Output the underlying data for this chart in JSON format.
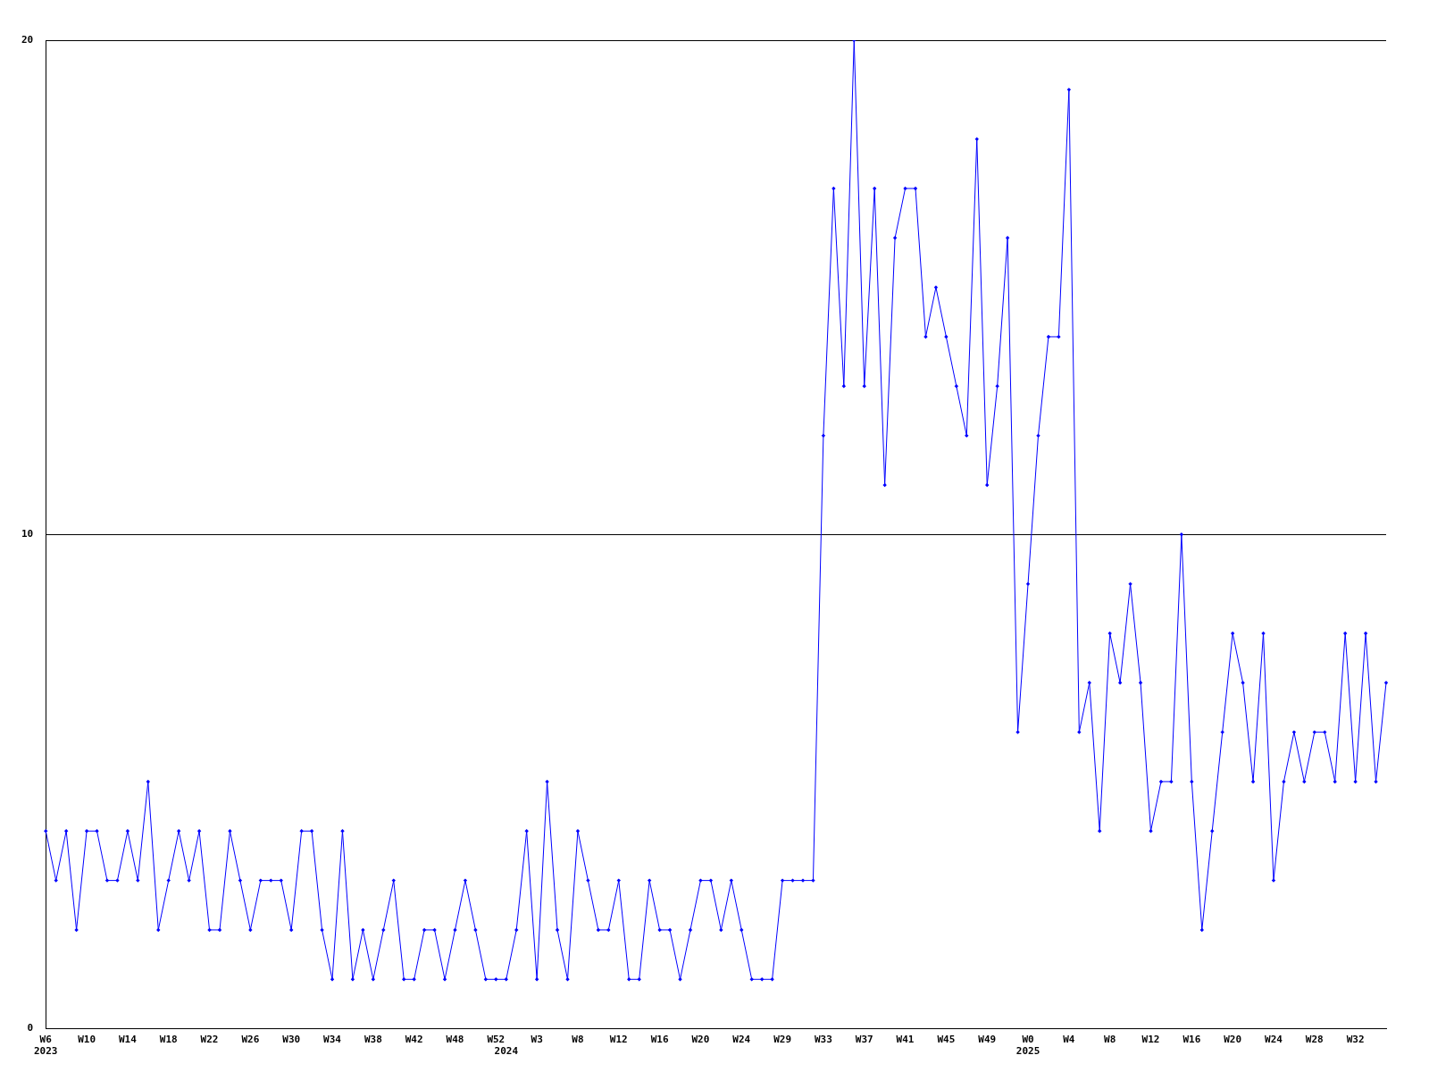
{
  "chart_data": {
    "type": "line",
    "categories": [
      "W6\n2023",
      null,
      null,
      null,
      "W10",
      null,
      null,
      null,
      "W14",
      null,
      null,
      null,
      "W18",
      null,
      null,
      null,
      "W22",
      null,
      null,
      null,
      "W26",
      null,
      null,
      null,
      "W30",
      null,
      null,
      null,
      "W34",
      null,
      null,
      null,
      "W38",
      null,
      null,
      null,
      "W42",
      null,
      null,
      null,
      "W48",
      null,
      null,
      null,
      "W52",
      "\n2024",
      null,
      null,
      "W3",
      null,
      null,
      null,
      "W8",
      null,
      null,
      null,
      "W12",
      null,
      null,
      null,
      "W16",
      null,
      null,
      null,
      "W20",
      null,
      null,
      null,
      "W24",
      null,
      null,
      null,
      "W29",
      null,
      null,
      null,
      "W33",
      null,
      null,
      null,
      "W37",
      null,
      null,
      null,
      "W41",
      null,
      null,
      null,
      "W45",
      null,
      null,
      null,
      "W49",
      null,
      null,
      null,
      "W0\n2025",
      null,
      null,
      null,
      "W4",
      null,
      null,
      null,
      "W8",
      null,
      null,
      null,
      "W12",
      null,
      null,
      null,
      "W16",
      null,
      null,
      null,
      "W20",
      null,
      null,
      null,
      "W24",
      null,
      null,
      null,
      "W28",
      null,
      null,
      null,
      "W32",
      null,
      null,
      null
    ],
    "series": [
      {
        "color": "#0000ff",
        "values": [
          4,
          3,
          4,
          2,
          4,
          4,
          3,
          3,
          4,
          3,
          5,
          2,
          3,
          4,
          3,
          4,
          2,
          2,
          4,
          3,
          2,
          3,
          3,
          3,
          2,
          4,
          4,
          2,
          1,
          4,
          1,
          2,
          1,
          2,
          3,
          1,
          1,
          2,
          2,
          1,
          2,
          3,
          2,
          1,
          1,
          1,
          2,
          4,
          1,
          5,
          2,
          1,
          4,
          3,
          2,
          2,
          3,
          1,
          1,
          3,
          2,
          2,
          1,
          2,
          3,
          3,
          2,
          3,
          2,
          1,
          1,
          1,
          3,
          3,
          3,
          3,
          12,
          17,
          13,
          20,
          13,
          17,
          11,
          16,
          17,
          17,
          14,
          15,
          14,
          13,
          12,
          18,
          11,
          13,
          16,
          6,
          9,
          12,
          14,
          14,
          19,
          6,
          7,
          4,
          8,
          7,
          9,
          7,
          4,
          5,
          5,
          10,
          5,
          2,
          4,
          6,
          8,
          7,
          5,
          8,
          3,
          5,
          6,
          5,
          6,
          6,
          5,
          8,
          5,
          8,
          5,
          7
        ]
      }
    ],
    "ylim": [
      0,
      20
    ],
    "yticks": [
      0,
      10,
      20
    ],
    "grid": "y",
    "legend": false,
    "marker": "diamond",
    "line_style": "solid"
  }
}
